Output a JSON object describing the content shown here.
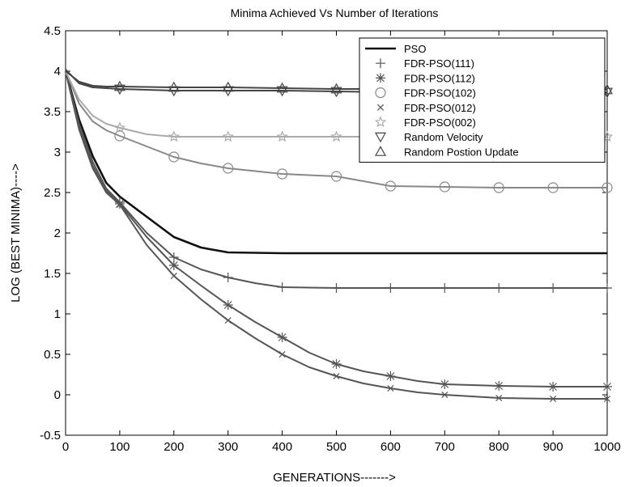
{
  "chart_data": {
    "type": "line",
    "title": "Minima Achieved Vs Number of Iterations",
    "xlabel": "GENERATIONS------->",
    "ylabel": "LOG (BEST MINIMA)---->",
    "xlim": [
      0,
      1000
    ],
    "ylim": [
      -0.5,
      4.5
    ],
    "xticks": [
      "0",
      "100",
      "200",
      "300",
      "400",
      "500",
      "600",
      "700",
      "800",
      "900",
      "1000"
    ],
    "yticks": [
      "-0.5",
      "0",
      "0.5",
      "1",
      "1.5",
      "2",
      "2.5",
      "3",
      "3.5",
      "4",
      "4.5"
    ],
    "grid": false,
    "legend_position": "top-right",
    "series": [
      {
        "name": "PSO",
        "color": "#111111",
        "marker": "none",
        "x": [
          0,
          25,
          50,
          75,
          100,
          150,
          200,
          250,
          300,
          400,
          500,
          600,
          700,
          800,
          900,
          1000
        ],
        "y": [
          4.0,
          3.4,
          2.95,
          2.62,
          2.45,
          2.2,
          1.95,
          1.82,
          1.76,
          1.75,
          1.75,
          1.75,
          1.75,
          1.75,
          1.75,
          1.75
        ]
      },
      {
        "name": "FDR-PSO(111)",
        "color": "#555555",
        "marker": "plus",
        "x": [
          0,
          25,
          50,
          75,
          100,
          150,
          200,
          250,
          300,
          350,
          400,
          500,
          600,
          700,
          800,
          900,
          1000
        ],
        "y": [
          4.0,
          3.35,
          2.88,
          2.55,
          2.38,
          2.0,
          1.7,
          1.55,
          1.45,
          1.38,
          1.33,
          1.32,
          1.32,
          1.32,
          1.32,
          1.32,
          1.32
        ]
      },
      {
        "name": "FDR-PSO(112)",
        "color": "#555555",
        "marker": "asterisk",
        "x": [
          0,
          25,
          50,
          75,
          100,
          150,
          200,
          250,
          300,
          350,
          400,
          450,
          500,
          550,
          600,
          650,
          700,
          800,
          900,
          1000
        ],
        "y": [
          4.0,
          3.3,
          2.83,
          2.52,
          2.36,
          1.95,
          1.6,
          1.35,
          1.11,
          0.9,
          0.71,
          0.52,
          0.38,
          0.29,
          0.23,
          0.17,
          0.13,
          0.11,
          0.1,
          0.1
        ]
      },
      {
        "name": "FDR-PSO(102)",
        "color": "#888888",
        "marker": "circle",
        "x": [
          0,
          25,
          50,
          75,
          100,
          150,
          200,
          250,
          300,
          400,
          500,
          550,
          600,
          700,
          800,
          900,
          1000
        ],
        "y": [
          4.0,
          3.6,
          3.38,
          3.27,
          3.2,
          3.07,
          2.94,
          2.86,
          2.8,
          2.73,
          2.7,
          2.64,
          2.58,
          2.57,
          2.56,
          2.56,
          2.56
        ]
      },
      {
        "name": "FDR-PSO(012)",
        "color": "#555555",
        "marker": "x",
        "x": [
          0,
          25,
          50,
          75,
          100,
          150,
          200,
          250,
          300,
          350,
          400,
          450,
          500,
          550,
          600,
          650,
          700,
          800,
          900,
          1000
        ],
        "y": [
          4.0,
          3.28,
          2.8,
          2.5,
          2.35,
          1.85,
          1.47,
          1.18,
          0.92,
          0.7,
          0.5,
          0.34,
          0.23,
          0.14,
          0.08,
          0.03,
          0.0,
          -0.04,
          -0.05,
          -0.05
        ]
      },
      {
        "name": "FDR-PSO(002)",
        "color": "#aaaaaa",
        "marker": "star",
        "x": [
          0,
          25,
          50,
          75,
          100,
          150,
          200,
          300,
          400,
          500,
          600,
          700,
          800,
          900,
          1000
        ],
        "y": [
          4.0,
          3.65,
          3.45,
          3.35,
          3.3,
          3.22,
          3.19,
          3.19,
          3.19,
          3.19,
          3.19,
          3.19,
          3.19,
          3.19,
          3.19
        ]
      },
      {
        "name": "Random Velocity",
        "color": "#444444",
        "marker": "triangle-down",
        "x": [
          0,
          25,
          50,
          75,
          100,
          200,
          300,
          400,
          500,
          600,
          700,
          800,
          900,
          1000
        ],
        "y": [
          4.02,
          3.85,
          3.8,
          3.79,
          3.78,
          3.76,
          3.76,
          3.76,
          3.75,
          3.74,
          3.74,
          3.74,
          3.74,
          3.74
        ]
      },
      {
        "name": "Random Postion Update",
        "color": "#444444",
        "marker": "triangle-up",
        "x": [
          0,
          25,
          50,
          75,
          100,
          200,
          300,
          400,
          500,
          600,
          700,
          800,
          900,
          1000
        ],
        "y": [
          4.0,
          3.87,
          3.82,
          3.81,
          3.81,
          3.8,
          3.8,
          3.79,
          3.78,
          3.78,
          3.78,
          3.77,
          3.77,
          3.77
        ]
      }
    ],
    "marker_x": [
      100,
      200,
      300,
      400,
      500,
      600,
      700,
      800,
      900,
      1000
    ]
  }
}
